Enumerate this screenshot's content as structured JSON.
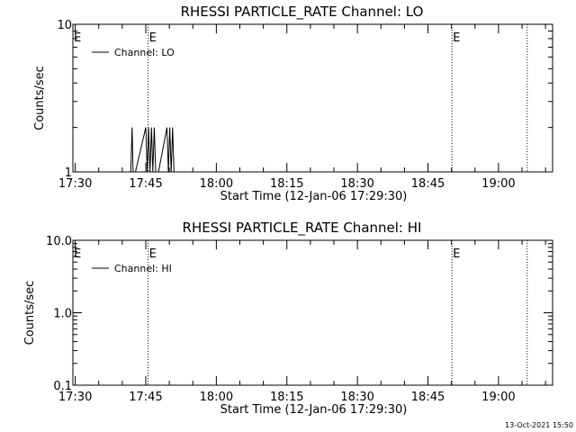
{
  "chart_data": [
    {
      "type": "line",
      "title": "RHESSI PARTICLE_RATE Channel: LO",
      "xlabel": "Start Time (12-Jan-06 17:29:30)",
      "ylabel": "Counts/sec",
      "yscale": "log",
      "ylim": [
        1,
        10
      ],
      "y_tick_values": [
        1,
        10
      ],
      "y_tick_labels": [
        "1",
        "10"
      ],
      "xlim": [
        "17:29:30",
        "19:11:30"
      ],
      "x_tick_labels": [
        "17:30",
        "17:45",
        "18:00",
        "18:15",
        "18:30",
        "18:45",
        "19:00"
      ],
      "x_tick_minutes": [
        0.5,
        15.5,
        30.5,
        45.5,
        60.5,
        75.5,
        90.5
      ],
      "event_markers": [
        {
          "minute": 16.0,
          "label": "E"
        },
        {
          "minute": 80.6,
          "label": "E"
        },
        {
          "minute": 96.6,
          "label": ""
        }
      ],
      "edge_label": "E",
      "legend_position": "top-left",
      "grid": false,
      "series": [
        {
          "name": "Channel: LO",
          "x_minutes": [
            12.3,
            12.6,
            12.8,
            13.0,
            13.3,
            15.5,
            15.8,
            16.1,
            16.4,
            16.7,
            17.0,
            17.3,
            17.6,
            17.9,
            18.2,
            20.0,
            20.3,
            20.6,
            20.9,
            21.2,
            21.5,
            21.8
          ],
          "values": [
            1.0,
            2.0,
            1.0,
            1.0,
            1.0,
            2.0,
            1.0,
            2.0,
            1.0,
            2.0,
            1.0,
            2.0,
            1.0,
            1.0,
            1.0,
            2.0,
            1.0,
            2.0,
            1.0,
            2.0,
            1.0,
            1.0
          ]
        }
      ]
    },
    {
      "type": "line",
      "title": "RHESSI PARTICLE_RATE Channel: HI",
      "xlabel": "Start Time (12-Jan-06 17:29:30)",
      "ylabel": "Counts/sec",
      "yscale": "log",
      "ylim": [
        0.1,
        10
      ],
      "y_tick_values": [
        0.1,
        1,
        10
      ],
      "y_tick_labels": [
        "0.1",
        "1.0",
        "10.0"
      ],
      "xlim": [
        "17:29:30",
        "19:11:30"
      ],
      "x_tick_labels": [
        "17:30",
        "17:45",
        "18:00",
        "18:15",
        "18:30",
        "18:45",
        "19:00"
      ],
      "x_tick_minutes": [
        0.5,
        15.5,
        30.5,
        45.5,
        60.5,
        75.5,
        90.5
      ],
      "event_markers": [
        {
          "minute": 16.0,
          "label": "E"
        },
        {
          "minute": 80.6,
          "label": "E"
        },
        {
          "minute": 96.6,
          "label": ""
        }
      ],
      "edge_label": "E",
      "legend_position": "top-left",
      "grid": false,
      "series": [
        {
          "name": "Channel: HI",
          "x_minutes": [],
          "values": []
        }
      ]
    }
  ],
  "footer": {
    "timestamp": "13-Oct-2021 15:50"
  }
}
